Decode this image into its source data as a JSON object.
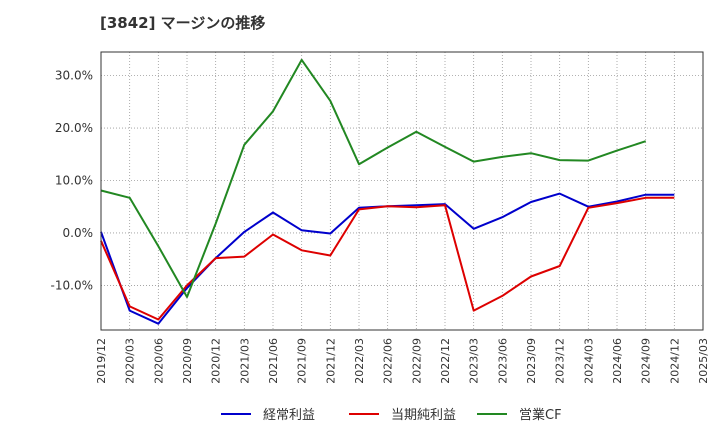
{
  "chart_data": {
    "type": "line",
    "title": "[3842]  マージンの推移",
    "xlabel": "",
    "ylabel": "",
    "x": [
      "2019/12",
      "2020/03",
      "2020/06",
      "2020/09",
      "2020/12",
      "2021/03",
      "2021/06",
      "2021/09",
      "2021/12",
      "2022/03",
      "2022/06",
      "2022/09",
      "2022/12",
      "2023/03",
      "2023/06",
      "2023/09",
      "2023/12",
      "2024/03",
      "2024/06",
      "2024/09",
      "2024/12",
      "2025/03"
    ],
    "y_ticks": [
      {
        "value": 30,
        "label": "30.0%"
      },
      {
        "value": 20,
        "label": "20.0%"
      },
      {
        "value": 10,
        "label": "10.0%"
      },
      {
        "value": 0,
        "label": "0.0%"
      },
      {
        "value": -10,
        "label": "-10.0%"
      }
    ],
    "ylim": [
      -18.5,
      34.5
    ],
    "grid": true,
    "legend_position": "bottom",
    "series": [
      {
        "name": "経常利益",
        "color": "#0000cc",
        "values": [
          0.2,
          -14.8,
          -17.3,
          -10.5,
          -4.8,
          0.2,
          3.9,
          0.5,
          -0.1,
          4.8,
          5.1,
          5.3,
          5.5,
          0.8,
          3.0,
          5.9,
          7.5,
          5.0,
          6.0,
          7.3,
          7.3,
          null
        ]
      },
      {
        "name": "当期純利益",
        "color": "#dd0000",
        "values": [
          -1.5,
          -14.0,
          -16.5,
          -10.0,
          -4.8,
          -4.5,
          -0.3,
          -3.3,
          -4.3,
          4.5,
          5.1,
          4.9,
          5.3,
          -14.8,
          -12.0,
          -8.3,
          -6.3,
          4.8,
          5.7,
          6.7,
          6.7,
          null
        ]
      },
      {
        "name": "営業CF",
        "color": "#228822",
        "values": [
          8.1,
          6.7,
          -2.5,
          -12.2,
          1.8,
          16.8,
          23.2,
          33.0,
          25.2,
          13.1,
          16.3,
          19.3,
          16.4,
          13.6,
          14.5,
          15.2,
          13.9,
          13.8,
          15.7,
          17.5,
          null,
          null
        ]
      }
    ]
  }
}
